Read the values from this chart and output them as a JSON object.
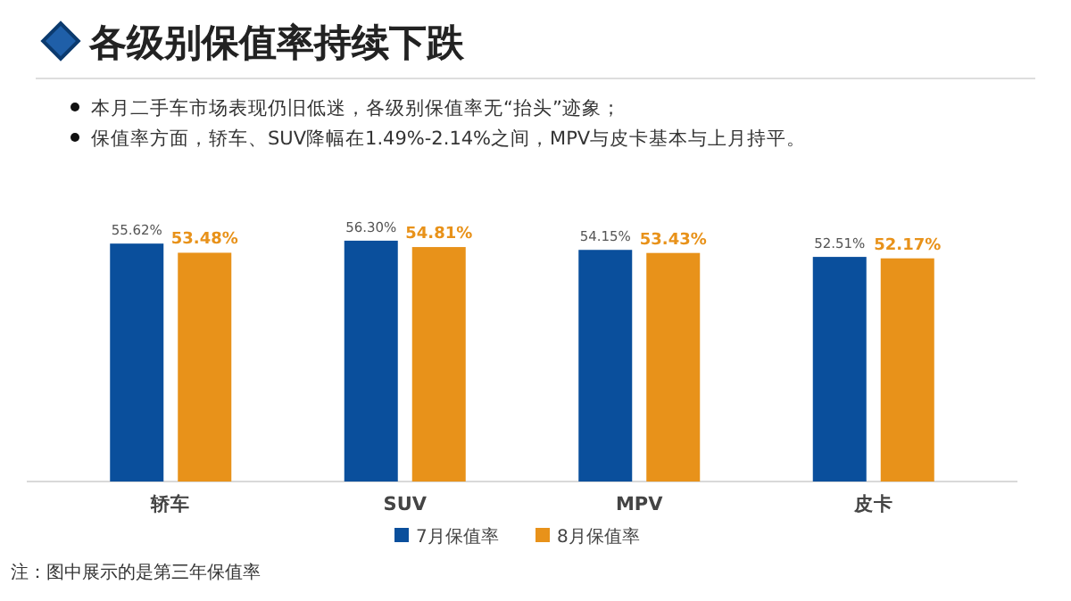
{
  "chart_data": {
    "type": "bar",
    "title": "各级别保值率持续下跌",
    "annotations": [
      "本月二手车市场表现仍旧低迷，各级别保值率无“抬头”迹象；",
      "保值率方面，轿车、SUV降幅在1.49%-2.14%之间，MPV与皮卡基本与上月持平。",
      "注：图中展示的是第三年保值率"
    ],
    "categories": [
      "轿车",
      "SUV",
      "MPV",
      "皮卡"
    ],
    "series": [
      {
        "name": "7月保值率",
        "color": "#0a4f9c",
        "values": [
          55.62,
          56.3,
          54.15,
          52.51
        ],
        "value_labels": [
          "55.62%",
          "56.30%",
          "54.15%",
          "52.51%"
        ]
      },
      {
        "name": "8月保值率",
        "color": "#e8921a",
        "values": [
          53.48,
          54.81,
          53.43,
          52.17
        ],
        "value_labels": [
          "53.48%",
          "54.81%",
          "53.43%",
          "52.17%"
        ]
      }
    ],
    "legend": "bottom"
  }
}
